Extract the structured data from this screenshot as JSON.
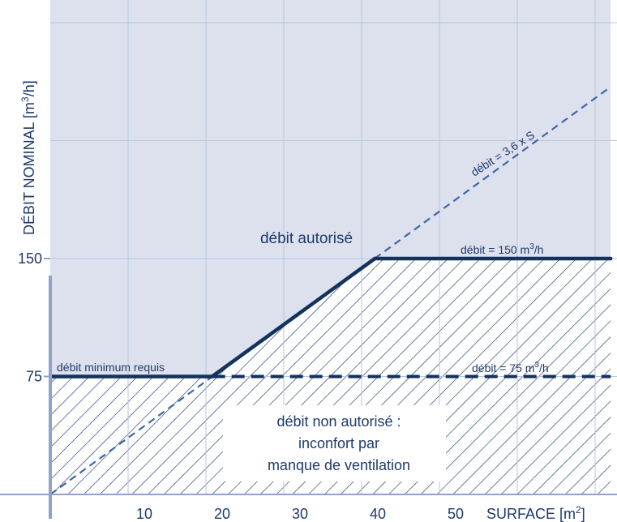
{
  "colors": {
    "background": "#ffffff",
    "region_fill": "#dde1ee",
    "grid": "#b8c6e0",
    "hatch": "#1f3a6b",
    "thick_line": "#13325e",
    "dashed_line": "#3f67a3",
    "axis": "#8fa2c8",
    "text": "#1f3a6b"
  },
  "chart_data": {
    "type": "line",
    "xlabel": "SURFACE",
    "xlabel_unit": "[m²]",
    "ylabel": "DÉBIT NOMINAL",
    "ylabel_unit": "[m³/h]",
    "xlim": [
      0,
      72
    ],
    "ylim": [
      0,
      300
    ],
    "x_ticks": [
      10,
      20,
      30,
      40,
      50
    ],
    "y_ticks": [
      75,
      150
    ],
    "grid": true,
    "series": [
      {
        "name": "débit = 3,6 x S",
        "style": "dashed",
        "points": [
          [
            0,
            0
          ],
          [
            72,
            259.2
          ]
        ]
      },
      {
        "name": "débit = 75 m³/h",
        "style": "thick-dashed",
        "points": [
          [
            20.8,
            75
          ],
          [
            72,
            75
          ]
        ]
      },
      {
        "name": "débit = 150 m³/h",
        "style": "thick",
        "points": [
          [
            41.7,
            150
          ],
          [
            72,
            150
          ]
        ]
      },
      {
        "name": "débit minimum requis",
        "style": "thick",
        "points": [
          [
            0,
            75
          ],
          [
            20.8,
            75
          ]
        ]
      },
      {
        "name": "",
        "style": "thick",
        "points": [
          [
            20.8,
            75
          ],
          [
            41.7,
            150
          ]
        ]
      }
    ],
    "regions": {
      "upper_label": "débit autorisé",
      "lower_label": [
        "débit non autorisé :",
        "inconfort par",
        "manque de ventilation"
      ],
      "boundary": [
        [
          0,
          75
        ],
        [
          20.8,
          75
        ],
        [
          41.7,
          150
        ],
        [
          72,
          150
        ]
      ]
    }
  }
}
